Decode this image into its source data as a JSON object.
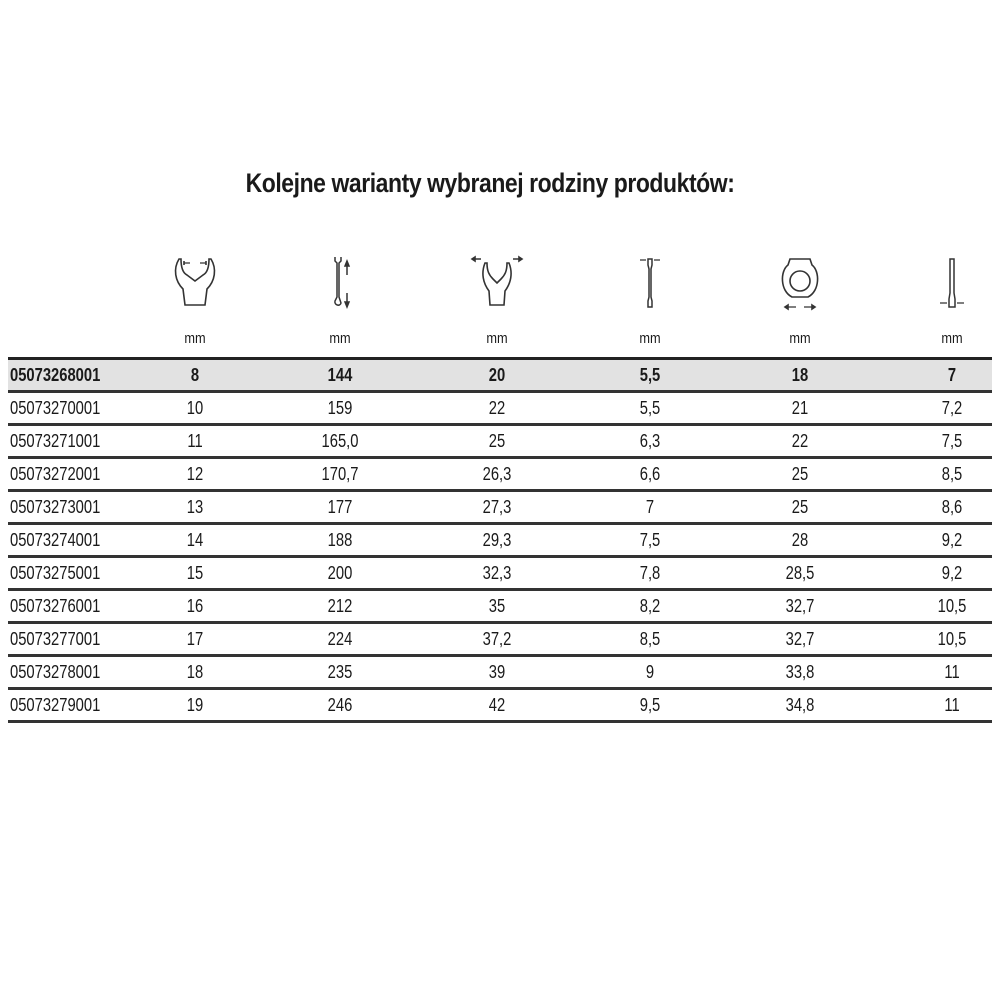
{
  "title": "Kolejne warianty wybranej rodziny produktów:",
  "columns": [
    {
      "icon": "open-end-width-icon",
      "unit": "mm"
    },
    {
      "icon": "wrench-length-icon",
      "unit": "mm"
    },
    {
      "icon": "open-end-head-width-icon",
      "unit": "mm"
    },
    {
      "icon": "open-end-thickness-icon",
      "unit": "mm"
    },
    {
      "icon": "ring-head-width-icon",
      "unit": "mm"
    },
    {
      "icon": "ring-end-thickness-icon",
      "unit": "mm"
    }
  ],
  "rows": [
    {
      "code": "05073268001",
      "values": [
        "8",
        "144",
        "20",
        "5,5",
        "18",
        "7"
      ],
      "highlighted": true
    },
    {
      "code": "05073270001",
      "values": [
        "10",
        "159",
        "22",
        "5,5",
        "21",
        "7,2"
      ]
    },
    {
      "code": "05073271001",
      "values": [
        "11",
        "165,0",
        "25",
        "6,3",
        "22",
        "7,5"
      ]
    },
    {
      "code": "05073272001",
      "values": [
        "12",
        "170,7",
        "26,3",
        "6,6",
        "25",
        "8,5"
      ]
    },
    {
      "code": "05073273001",
      "values": [
        "13",
        "177",
        "27,3",
        "7",
        "25",
        "8,6"
      ]
    },
    {
      "code": "05073274001",
      "values": [
        "14",
        "188",
        "29,3",
        "7,5",
        "28",
        "9,2"
      ]
    },
    {
      "code": "05073275001",
      "values": [
        "15",
        "200",
        "32,3",
        "7,8",
        "28,5",
        "9,2"
      ]
    },
    {
      "code": "05073276001",
      "values": [
        "16",
        "212",
        "35",
        "8,2",
        "32,7",
        "10,5"
      ]
    },
    {
      "code": "05073277001",
      "values": [
        "17",
        "224",
        "37,2",
        "8,5",
        "32,7",
        "10,5"
      ]
    },
    {
      "code": "05073278001",
      "values": [
        "18",
        "235",
        "39",
        "9",
        "33,8",
        "11"
      ]
    },
    {
      "code": "05073279001",
      "values": [
        "19",
        "246",
        "42",
        "9,5",
        "34,8",
        "11"
      ]
    }
  ],
  "colors": {
    "highlight_row": "#e2e2e2",
    "rule": "#333333"
  }
}
